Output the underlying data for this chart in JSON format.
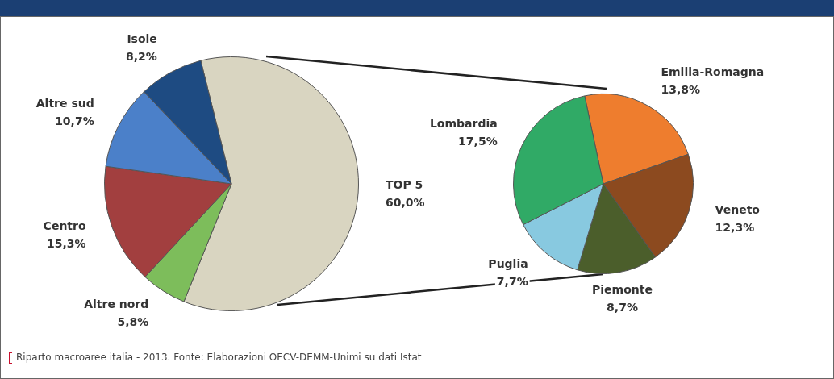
{
  "chart_data": [
    {
      "type": "pie",
      "categories": [
        "TOP 5",
        "Altre nord",
        "Centro",
        "Altre sud",
        "Isole"
      ],
      "values": [
        60.0,
        5.8,
        15.3,
        10.7,
        8.2
      ],
      "value_labels": [
        "60,0%",
        "5,8%",
        "15,3%",
        "10,7%",
        "8,2%"
      ],
      "colors": [
        "#d9d5c1",
        "#7dbd5b",
        "#a23f3f",
        "#4b80c9",
        "#1e4b82"
      ],
      "annotations": [
        "Riparto macroaree italia - 2013. Fonte: Elaborazioni OECV-DEMM-Unimi su dati Istat"
      ]
    },
    {
      "type": "pie",
      "categories": [
        "Emilia-Romagna",
        "Veneto",
        "Piemonte",
        "Puglia",
        "Lombardia"
      ],
      "values": [
        13.8,
        12.3,
        8.7,
        7.7,
        17.5
      ],
      "value_labels": [
        "13,8%",
        "12,3%",
        "8,7%",
        "7,7%",
        "17,5%"
      ],
      "colors": [
        "#ee7d2e",
        "#8c4a1f",
        "#4b5e2b",
        "#88c9e0",
        "#30aa66"
      ]
    }
  ]
}
